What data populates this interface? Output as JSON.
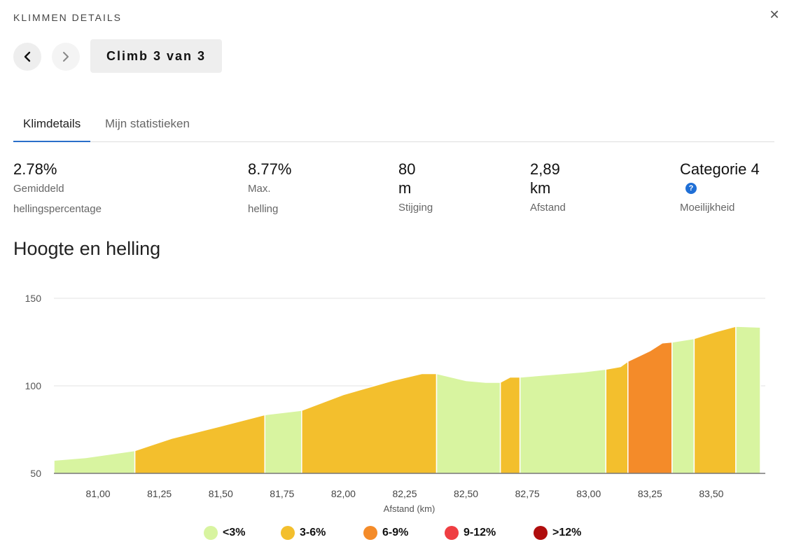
{
  "header": {
    "title": "KLIMMEN DETAILS",
    "close_icon": "close-icon"
  },
  "nav": {
    "prev_icon": "chevron-left-icon",
    "next_icon": "chevron-right-icon",
    "climb_label": "Climb 3 van 3"
  },
  "tabs": [
    {
      "label": "Klimdetails",
      "active": true
    },
    {
      "label": "Mijn statistieken",
      "active": false
    }
  ],
  "stats": [
    {
      "value": "2.78%",
      "label_lines": [
        "Gemiddeld",
        "hellingspercentage"
      ]
    },
    {
      "value": "8.77%",
      "label_lines": [
        "Max.",
        "helling"
      ]
    },
    {
      "value_lines": [
        "80",
        "m"
      ],
      "label": "Stijging"
    },
    {
      "value_lines": [
        "2,89",
        "km"
      ],
      "label": "Afstand"
    },
    {
      "value": "Categorie 4",
      "help_icon": "?",
      "label": "Moeilijkheid"
    }
  ],
  "section_title": "Hoogte en helling",
  "colors": {
    "lt3": "#d8f4a0",
    "3to6": "#f3bf2d",
    "6to9": "#f48b29",
    "9to12": "#ef3e42",
    "gt12": "#b00d0d",
    "accent": "#2a6fc9"
  },
  "chart_data": {
    "type": "area",
    "xlabel": "Afstand (km)",
    "ylabel": "",
    "xlim": [
      80.82,
      83.72
    ],
    "ylim": [
      50,
      150
    ],
    "y_ticks": [
      50,
      100,
      150
    ],
    "x_ticks": [
      "81,00",
      "81,25",
      "81,50",
      "81,75",
      "82,00",
      "82,25",
      "82,50",
      "82,75",
      "83,00",
      "83,25",
      "83,50"
    ],
    "x_tick_values": [
      81.0,
      81.25,
      81.5,
      81.75,
      82.0,
      82.25,
      82.5,
      82.75,
      83.0,
      83.25,
      83.5
    ],
    "grid": true,
    "segments": [
      {
        "x": [
          80.82,
          80.95,
          81.05,
          81.15
        ],
        "y": [
          57.5,
          59,
          61,
          63
        ],
        "grade": "<3%"
      },
      {
        "x": [
          81.15,
          81.3,
          81.5,
          81.68
        ],
        "y": [
          63,
          70,
          77,
          83.5
        ],
        "grade": "3-6%"
      },
      {
        "x": [
          81.68,
          81.8,
          81.83
        ],
        "y": [
          83.5,
          85.5,
          86
        ],
        "grade": "<3%"
      },
      {
        "x": [
          81.83,
          82.0,
          82.2,
          82.32,
          82.38
        ],
        "y": [
          86,
          95,
          103,
          107,
          107
        ],
        "grade": "3-6%"
      },
      {
        "x": [
          82.38,
          82.5,
          82.58,
          82.64
        ],
        "y": [
          107,
          103,
          102,
          102
        ],
        "grade": "<3%"
      },
      {
        "x": [
          82.64,
          82.68,
          82.72
        ],
        "y": [
          102,
          105,
          105
        ],
        "grade": "3-6%"
      },
      {
        "x": [
          82.72,
          82.85,
          82.98,
          83.07
        ],
        "y": [
          105,
          106.5,
          108,
          109.5
        ],
        "grade": "<3%"
      },
      {
        "x": [
          83.07,
          83.13,
          83.16
        ],
        "y": [
          109.5,
          111,
          114
        ],
        "grade": "3-6%"
      },
      {
        "x": [
          83.16,
          83.25,
          83.3,
          83.34
        ],
        "y": [
          114,
          120,
          124.5,
          125
        ],
        "grade": "6-9%"
      },
      {
        "x": [
          83.34,
          83.43
        ],
        "y": [
          125,
          127
        ],
        "grade": "<3%"
      },
      {
        "x": [
          83.43,
          83.52,
          83.6
        ],
        "y": [
          127,
          131,
          134
        ],
        "grade": "3-6%"
      },
      {
        "x": [
          83.6,
          83.7
        ],
        "y": [
          134,
          133.5
        ],
        "grade": "<3%"
      }
    ],
    "legend": [
      "<3%",
      "3-6%",
      "6-9%",
      "9-12%",
      ">12%"
    ],
    "legend_placement": "bottom"
  }
}
